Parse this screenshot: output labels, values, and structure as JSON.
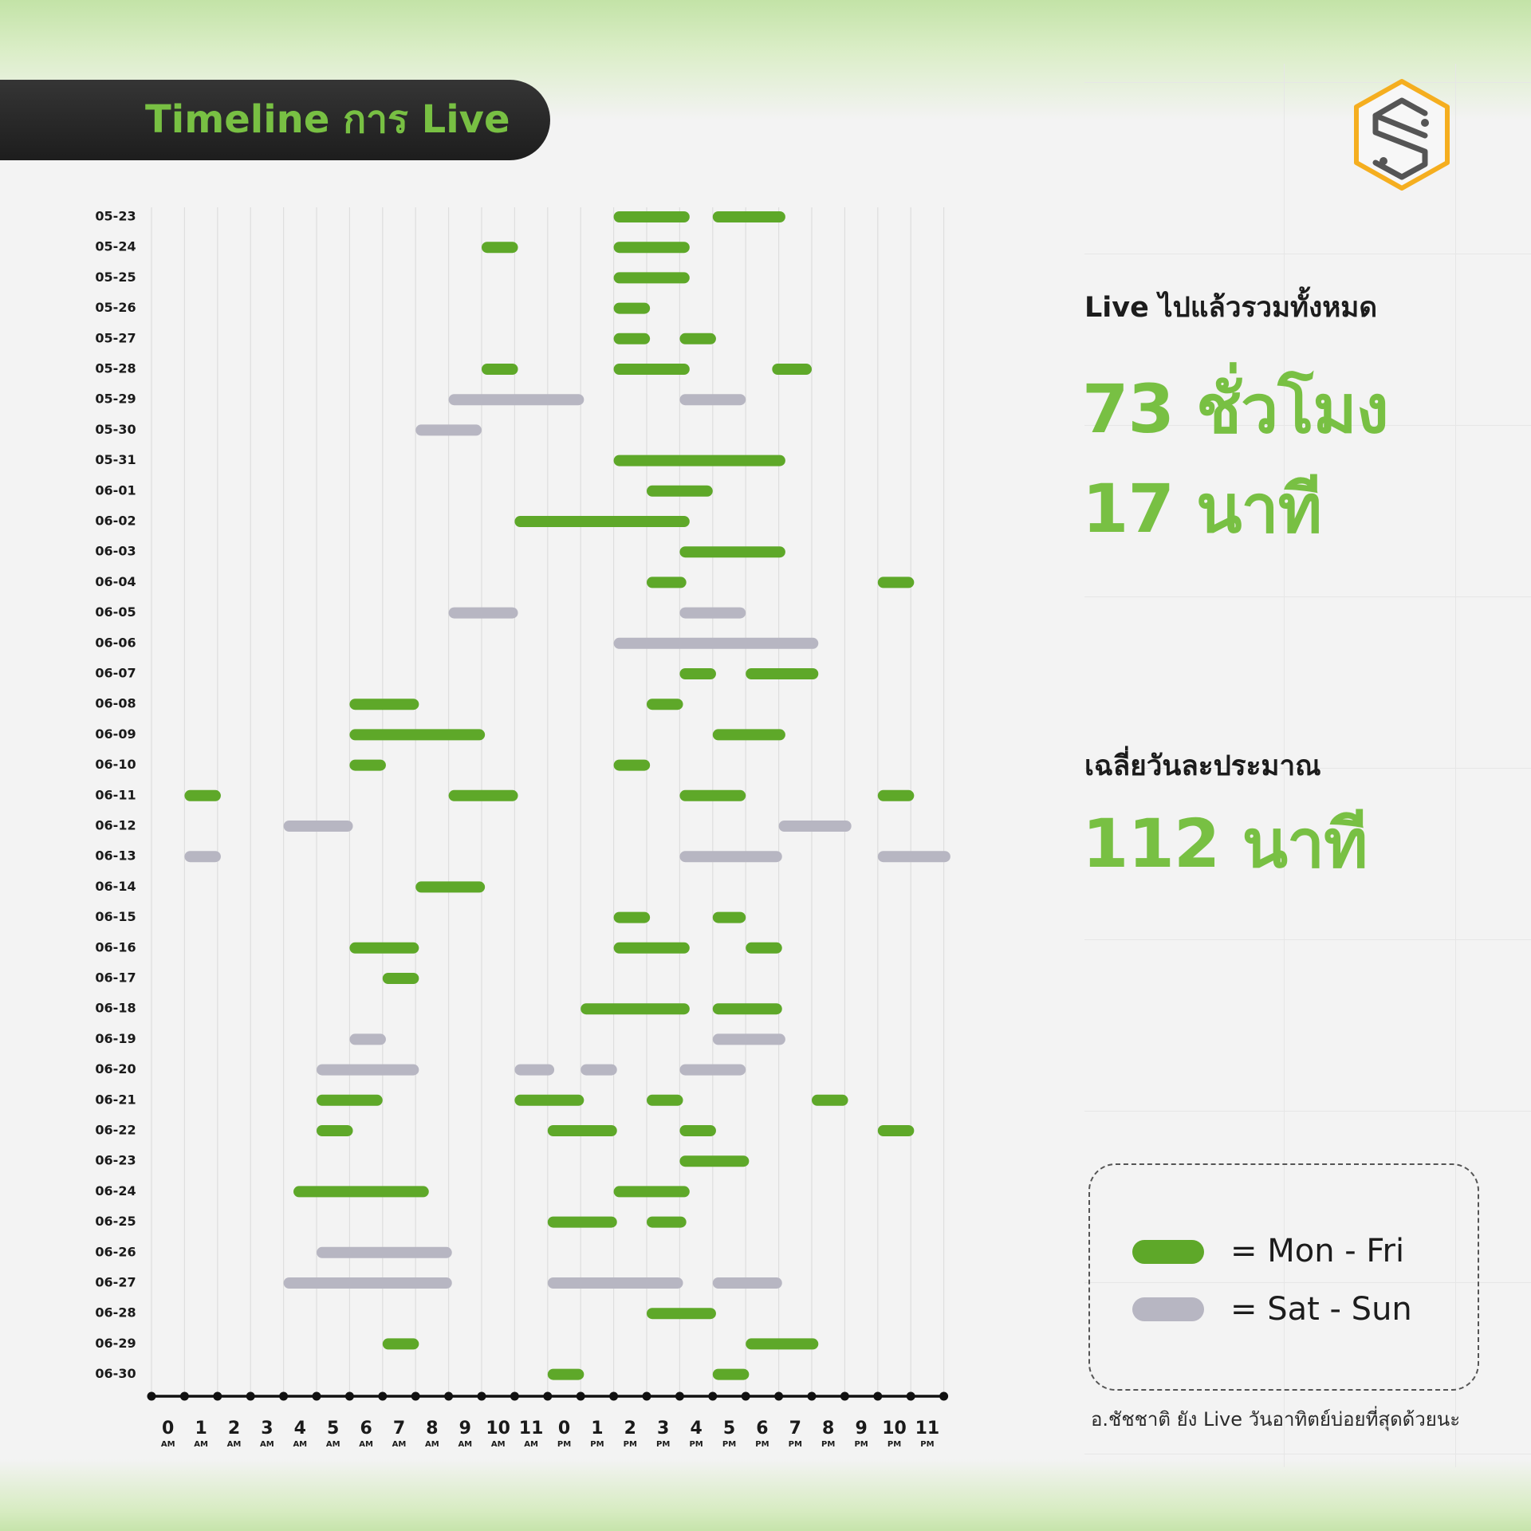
{
  "header": {
    "title": "Timeline การ Live"
  },
  "colors": {
    "weekday": "#5ea829",
    "weekend": "#b7b6c2",
    "accent": "#78c043",
    "logo": "#f5ae1f"
  },
  "icons": {
    "logo": "hexagon-logo-icon"
  },
  "stats": {
    "total_label": "Live ไปแล้วรวมทั้งหมด",
    "total_hours": "73 ชั่วโมง",
    "total_minutes": "17 นาที",
    "avg_label": "เฉลี่ยวันละประมาณ",
    "avg_value": "112 นาที"
  },
  "legend": {
    "weekday_label": "= Mon - Fri",
    "weekend_label": "= Sat - Sun"
  },
  "footnote": "อ.ชัชชาติ ยัง Live วันอาทิตย์บ่อยที่สุดด้วยนะ",
  "chart_data": {
    "type": "timeline",
    "title": "Timeline การ Live",
    "xlim": [
      0,
      24
    ],
    "grid": true,
    "x_ticks": [
      {
        "num": "0",
        "ampm": "AM"
      },
      {
        "num": "1",
        "ampm": "AM"
      },
      {
        "num": "2",
        "ampm": "AM"
      },
      {
        "num": "3",
        "ampm": "AM"
      },
      {
        "num": "4",
        "ampm": "AM"
      },
      {
        "num": "5",
        "ampm": "AM"
      },
      {
        "num": "6",
        "ampm": "AM"
      },
      {
        "num": "7",
        "ampm": "AM"
      },
      {
        "num": "8",
        "ampm": "AM"
      },
      {
        "num": "9",
        "ampm": "AM"
      },
      {
        "num": "10",
        "ampm": "AM"
      },
      {
        "num": "11",
        "ampm": "AM"
      },
      {
        "num": "0",
        "ampm": "PM"
      },
      {
        "num": "1",
        "ampm": "PM"
      },
      {
        "num": "2",
        "ampm": "PM"
      },
      {
        "num": "3",
        "ampm": "PM"
      },
      {
        "num": "4",
        "ampm": "PM"
      },
      {
        "num": "5",
        "ampm": "PM"
      },
      {
        "num": "6",
        "ampm": "PM"
      },
      {
        "num": "7",
        "ampm": "PM"
      },
      {
        "num": "8",
        "ampm": "PM"
      },
      {
        "num": "9",
        "ampm": "PM"
      },
      {
        "num": "10",
        "ampm": "PM"
      },
      {
        "num": "11",
        "ampm": "PM"
      }
    ],
    "series": [
      {
        "name": "Mon - Fri",
        "key": "weekday"
      },
      {
        "name": "Sat - Sun",
        "key": "weekend"
      }
    ],
    "days": [
      {
        "date": "05-23",
        "type": "weekday",
        "sessions": [
          [
            14.0,
            16.3
          ],
          [
            17.0,
            19.2
          ]
        ]
      },
      {
        "date": "05-24",
        "type": "weekday",
        "sessions": [
          [
            10.0,
            11.1
          ],
          [
            14.0,
            16.3
          ]
        ]
      },
      {
        "date": "05-25",
        "type": "weekday",
        "sessions": [
          [
            14.0,
            16.3
          ]
        ]
      },
      {
        "date": "05-26",
        "type": "weekday",
        "sessions": [
          [
            14.0,
            15.1
          ]
        ]
      },
      {
        "date": "05-27",
        "type": "weekday",
        "sessions": [
          [
            14.0,
            15.1
          ],
          [
            16.0,
            17.1
          ]
        ]
      },
      {
        "date": "05-28",
        "type": "weekday",
        "sessions": [
          [
            10.0,
            11.1
          ],
          [
            14.0,
            16.3
          ],
          [
            18.8,
            20.0
          ]
        ]
      },
      {
        "date": "05-29",
        "type": "weekend",
        "sessions": [
          [
            9.0,
            13.1
          ],
          [
            16.0,
            18.0
          ]
        ]
      },
      {
        "date": "05-30",
        "type": "weekend",
        "sessions": [
          [
            8.0,
            10.0
          ]
        ]
      },
      {
        "date": "05-31",
        "type": "weekday",
        "sessions": [
          [
            14.0,
            19.2
          ]
        ]
      },
      {
        "date": "06-01",
        "type": "weekday",
        "sessions": [
          [
            15.0,
            17.0
          ]
        ]
      },
      {
        "date": "06-02",
        "type": "weekday",
        "sessions": [
          [
            11.0,
            16.3
          ]
        ]
      },
      {
        "date": "06-03",
        "type": "weekday",
        "sessions": [
          [
            16.0,
            19.2
          ]
        ]
      },
      {
        "date": "06-04",
        "type": "weekday",
        "sessions": [
          [
            15.0,
            16.2
          ],
          [
            22.0,
            23.1
          ]
        ]
      },
      {
        "date": "06-05",
        "type": "weekend",
        "sessions": [
          [
            9.0,
            11.1
          ],
          [
            16.0,
            18.0
          ]
        ]
      },
      {
        "date": "06-06",
        "type": "weekend",
        "sessions": [
          [
            14.0,
            20.2
          ]
        ]
      },
      {
        "date": "06-07",
        "type": "weekday",
        "sessions": [
          [
            16.0,
            17.1
          ],
          [
            18.0,
            20.2
          ]
        ]
      },
      {
        "date": "06-08",
        "type": "weekday",
        "sessions": [
          [
            6.0,
            8.1
          ],
          [
            15.0,
            16.1
          ]
        ]
      },
      {
        "date": "06-09",
        "type": "weekday",
        "sessions": [
          [
            6.0,
            10.1
          ],
          [
            17.0,
            19.2
          ]
        ]
      },
      {
        "date": "06-10",
        "type": "weekday",
        "sessions": [
          [
            6.0,
            7.1
          ],
          [
            14.0,
            15.1
          ]
        ]
      },
      {
        "date": "06-11",
        "type": "weekday",
        "sessions": [
          [
            1.0,
            2.1
          ],
          [
            9.0,
            11.1
          ],
          [
            16.0,
            18.0
          ],
          [
            22.0,
            23.1
          ]
        ]
      },
      {
        "date": "06-12",
        "type": "weekend",
        "sessions": [
          [
            4.0,
            6.1
          ],
          [
            19.0,
            21.2
          ]
        ]
      },
      {
        "date": "06-13",
        "type": "weekend",
        "sessions": [
          [
            1.0,
            2.1
          ],
          [
            16.0,
            19.1
          ],
          [
            22.0,
            24.2
          ]
        ]
      },
      {
        "date": "06-14",
        "type": "weekday",
        "sessions": [
          [
            8.0,
            10.1
          ]
        ]
      },
      {
        "date": "06-15",
        "type": "weekday",
        "sessions": [
          [
            14.0,
            15.1
          ],
          [
            17.0,
            18.0
          ]
        ]
      },
      {
        "date": "06-16",
        "type": "weekday",
        "sessions": [
          [
            6.0,
            8.1
          ],
          [
            14.0,
            16.3
          ],
          [
            18.0,
            19.1
          ]
        ]
      },
      {
        "date": "06-17",
        "type": "weekday",
        "sessions": [
          [
            7.0,
            8.1
          ]
        ]
      },
      {
        "date": "06-18",
        "type": "weekday",
        "sessions": [
          [
            13.0,
            16.3
          ],
          [
            17.0,
            19.1
          ]
        ]
      },
      {
        "date": "06-19",
        "type": "weekend",
        "sessions": [
          [
            6.0,
            7.1
          ],
          [
            17.0,
            19.2
          ]
        ]
      },
      {
        "date": "06-20",
        "type": "weekend",
        "sessions": [
          [
            5.0,
            8.1
          ],
          [
            11.0,
            12.2
          ],
          [
            13.0,
            14.1
          ],
          [
            16.0,
            18.0
          ]
        ]
      },
      {
        "date": "06-21",
        "type": "weekday",
        "sessions": [
          [
            5.0,
            7.0
          ],
          [
            11.0,
            13.1
          ],
          [
            15.0,
            16.1
          ],
          [
            20.0,
            21.1
          ]
        ]
      },
      {
        "date": "06-22",
        "type": "weekday",
        "sessions": [
          [
            5.0,
            6.1
          ],
          [
            12.0,
            14.1
          ],
          [
            16.0,
            17.1
          ],
          [
            22.0,
            23.1
          ]
        ]
      },
      {
        "date": "06-23",
        "type": "weekday",
        "sessions": [
          [
            16.0,
            18.1
          ]
        ]
      },
      {
        "date": "06-24",
        "type": "weekday",
        "sessions": [
          [
            4.3,
            8.4
          ],
          [
            14.0,
            16.3
          ]
        ]
      },
      {
        "date": "06-25",
        "type": "weekday",
        "sessions": [
          [
            12.0,
            14.1
          ],
          [
            15.0,
            16.2
          ]
        ]
      },
      {
        "date": "06-26",
        "type": "weekend",
        "sessions": [
          [
            5.0,
            9.1
          ]
        ]
      },
      {
        "date": "06-27",
        "type": "weekend",
        "sessions": [
          [
            4.0,
            9.1
          ],
          [
            12.0,
            16.1
          ],
          [
            17.0,
            19.1
          ]
        ]
      },
      {
        "date": "06-28",
        "type": "weekday",
        "sessions": [
          [
            15.0,
            17.1
          ]
        ]
      },
      {
        "date": "06-29",
        "type": "weekday",
        "sessions": [
          [
            7.0,
            8.1
          ],
          [
            18.0,
            20.2
          ]
        ]
      },
      {
        "date": "06-30",
        "type": "weekday",
        "sessions": [
          [
            12.0,
            13.1
          ],
          [
            17.0,
            18.1
          ]
        ]
      }
    ]
  }
}
